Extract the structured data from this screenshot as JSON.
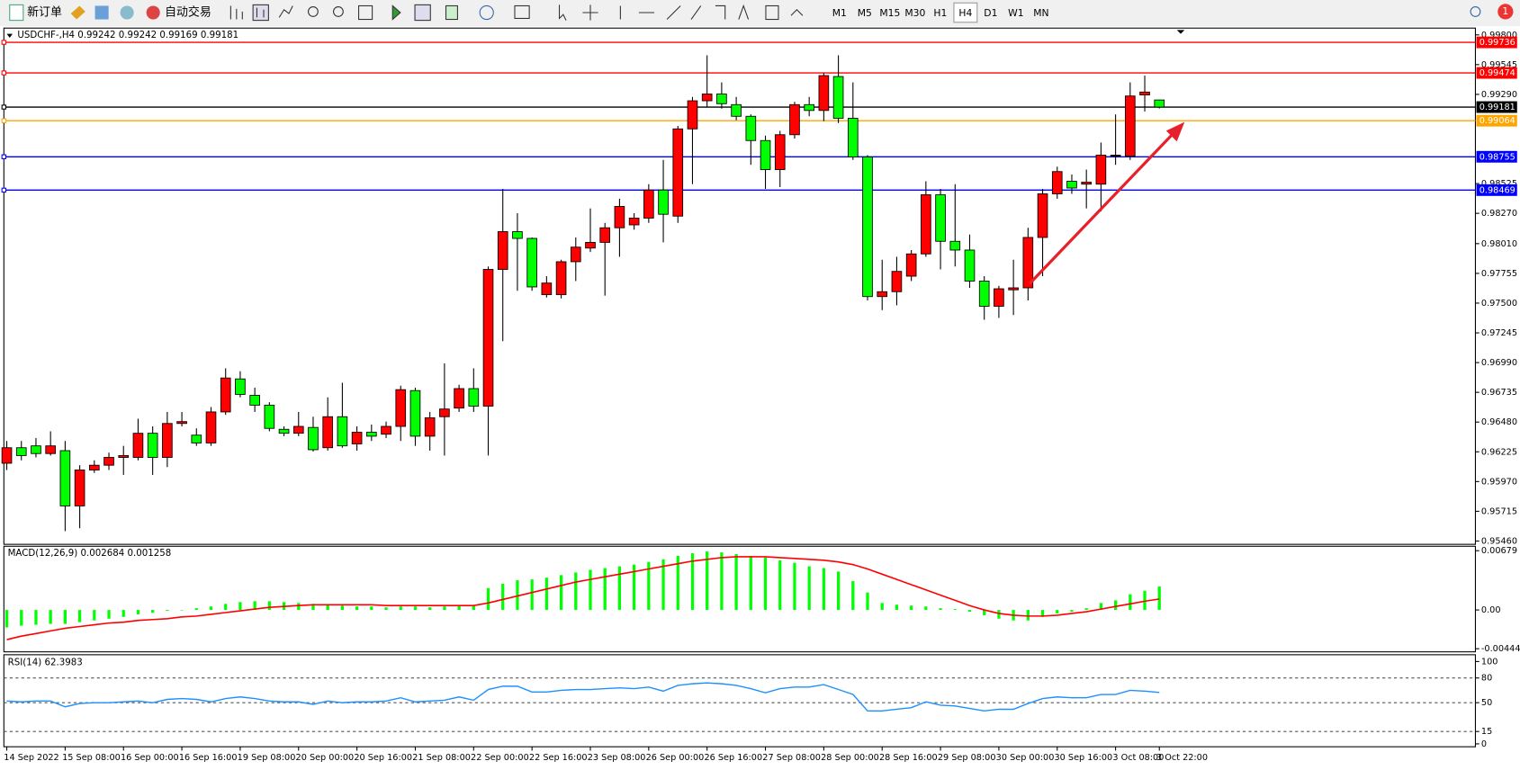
{
  "toolbar": {
    "new_order": "新订单",
    "auto_trading": "自动交易",
    "timeframes": [
      "M1",
      "M5",
      "M15",
      "M30",
      "H1",
      "H4",
      "D1",
      "W1",
      "MN"
    ],
    "active_timeframe": "H4",
    "notifications": 1
  },
  "chart_data": [
    {
      "type": "candlestick",
      "title": "USDCHF-,H4 0.99242 0.99242 0.99169 0.99181",
      "up_color": "#ff0000",
      "down_color": "#00ff00",
      "categories": [
        "14 Sep 2022",
        null,
        null,
        null,
        "15 Sep 08:00",
        null,
        null,
        null,
        "16 Sep 00:00",
        null,
        null,
        null,
        "16 Sep 16:00",
        null,
        null,
        null,
        "19 Sep 08:00",
        null,
        null,
        null,
        "20 Sep 00:00",
        null,
        null,
        null,
        "20 Sep 16:00",
        null,
        null,
        null,
        "21 Sep 08:00",
        null,
        null,
        null,
        "22 Sep 00:00",
        null,
        null,
        null,
        "22 Sep 16:00",
        null,
        null,
        null,
        "23 Sep 08:00",
        null,
        null,
        null,
        "26 Sep 00:00",
        null,
        null,
        null,
        "26 Sep 16:00",
        null,
        null,
        null,
        "27 Sep 08:00",
        null,
        null,
        null,
        "28 Sep 00:00",
        null,
        null,
        null,
        "28 Sep 16:00",
        null,
        null,
        null,
        "29 Sep 08:00",
        null,
        null,
        null,
        "30 Sep 00:00",
        null,
        null,
        null,
        "30 Sep 16:00",
        null,
        null,
        null,
        "3 Oct 08:00",
        null,
        null,
        "3 Oct 22:00"
      ],
      "open": [
        0.96127,
        0.9626,
        0.96276,
        0.9621,
        0.96235,
        0.95761,
        0.96069,
        0.9611,
        0.96177,
        0.96177,
        0.96384,
        0.96177,
        0.96468,
        0.96368,
        0.96301,
        0.96567,
        0.9685,
        0.96709,
        0.96625,
        0.96418,
        0.96384,
        0.96434,
        0.9626,
        0.96526,
        0.96293,
        0.96393,
        0.96376,
        0.96443,
        0.9675,
        0.96359,
        0.96526,
        0.966,
        0.96767,
        0.96617,
        0.97789,
        0.98113,
        0.98055,
        0.97573,
        0.97573,
        0.97855,
        0.97972,
        0.98021,
        0.98146,
        0.98171,
        0.98229,
        0.9847,
        0.98246,
        0.98994,
        0.99235,
        0.99293,
        0.99202,
        0.99102,
        0.98894,
        0.98645,
        0.98944,
        0.99202,
        0.99152,
        0.99443,
        0.99085,
        0.98753,
        0.97556,
        0.97598,
        0.97731,
        0.97922,
        0.98429,
        0.9803,
        0.97955,
        0.97689,
        0.97473,
        0.97614,
        0.97631,
        0.98063,
        0.98437,
        0.98545,
        0.9852,
        0.9852,
        0.98761,
        0.98761,
        0.99285,
        0.99242
      ],
      "high": [
        0.96318,
        0.96318,
        0.96343,
        0.96401,
        0.96318,
        0.9611,
        0.96152,
        0.96218,
        0.96276,
        0.96509,
        0.96443,
        0.96567,
        0.96567,
        0.96426,
        0.96609,
        0.96941,
        0.96916,
        0.96775,
        0.9665,
        0.96443,
        0.96567,
        0.96526,
        0.96692,
        0.96817,
        0.96443,
        0.96459,
        0.96484,
        0.96792,
        0.96775,
        0.96567,
        0.96983,
        0.968,
        0.96941,
        0.97814,
        0.98479,
        0.98271,
        0.98063,
        0.97731,
        0.97872,
        0.98063,
        0.98312,
        0.98188,
        0.98395,
        0.98271,
        0.9852,
        0.98728,
        0.99019,
        0.99268,
        0.99625,
        0.99393,
        0.99268,
        0.99118,
        0.98936,
        0.98977,
        0.99226,
        0.99268,
        0.99476,
        0.99625,
        0.99393,
        0.98769,
        0.97872,
        0.97897,
        0.97955,
        0.98545,
        0.98479,
        0.9852,
        0.98088,
        0.97731,
        0.97648,
        0.97872,
        0.98146,
        0.98479,
        0.9867,
        0.98603,
        0.98645,
        0.98877,
        0.99118,
        0.99393,
        0.99451,
        0.99242
      ],
      "low": [
        0.96069,
        0.96152,
        0.96177,
        0.96193,
        0.95545,
        0.9557,
        0.96044,
        0.96069,
        0.96027,
        0.96152,
        0.96027,
        0.96094,
        0.96443,
        0.96276,
        0.96276,
        0.96542,
        0.96692,
        0.96567,
        0.96401,
        0.96359,
        0.96359,
        0.96227,
        0.96235,
        0.9626,
        0.96235,
        0.96318,
        0.96343,
        0.96318,
        0.96276,
        0.96235,
        0.96193,
        0.96567,
        0.96567,
        0.96193,
        0.97174,
        0.97606,
        0.97606,
        0.97548,
        0.9754,
        0.97689,
        0.97938,
        0.97564,
        0.97897,
        0.9813,
        0.98188,
        0.98021,
        0.98188,
        0.9852,
        0.99185,
        0.99168,
        0.99069,
        0.98686,
        0.98479,
        0.98495,
        0.98911,
        0.99102,
        0.9906,
        0.99044,
        0.98728,
        0.97523,
        0.9744,
        0.97481,
        0.97689,
        0.97897,
        0.97789,
        0.97814,
        0.97631,
        0.97357,
        0.97373,
        0.97398,
        0.97523,
        0.97731,
        0.98395,
        0.98437,
        0.98312,
        0.98287,
        0.98686,
        0.98728,
        0.99143,
        0.99169
      ],
      "close": [
        0.9626,
        0.96193,
        0.9621,
        0.96276,
        0.95761,
        0.96069,
        0.9611,
        0.96177,
        0.96193,
        0.96384,
        0.96177,
        0.96468,
        0.96484,
        0.96301,
        0.96567,
        0.96858,
        0.96717,
        0.96625,
        0.96426,
        0.96384,
        0.96443,
        0.96243,
        0.96526,
        0.96276,
        0.96393,
        0.96359,
        0.96443,
        0.96758,
        0.96359,
        0.96517,
        0.96592,
        0.96767,
        0.96617,
        0.97789,
        0.98113,
        0.98055,
        0.97639,
        0.97672,
        0.97855,
        0.9798,
        0.98021,
        0.98146,
        0.98329,
        0.98229,
        0.9847,
        0.98262,
        0.98994,
        0.99235,
        0.99293,
        0.9921,
        0.99102,
        0.98894,
        0.98645,
        0.98944,
        0.99202,
        0.99152,
        0.99451,
        0.99085,
        0.98753,
        0.97556,
        0.97598,
        0.97772,
        0.97922,
        0.98429,
        0.9803,
        0.97955,
        0.97689,
        0.97473,
        0.97623,
        0.97631,
        0.98063,
        0.98437,
        0.98628,
        0.98487,
        0.98537,
        0.98769,
        0.98769,
        0.99276,
        0.9931,
        0.99181
      ],
      "ylim": [
        0.9544,
        0.9985
      ],
      "yticks": [
        {
          "value": 0.998,
          "label": "0.99800"
        },
        0.99545,
        {
          "value": 0.9929,
          "label": "0.99290"
        },
        0.98525,
        {
          "value": 0.9827,
          "label": "0.98270"
        },
        {
          "value": 0.9801,
          "label": "0.98010"
        },
        0.97755,
        {
          "value": 0.975,
          "label": "0.97500"
        },
        0.97245,
        {
          "value": 0.9699,
          "label": "0.96990"
        },
        0.96735,
        {
          "value": 0.9648,
          "label": "0.96480"
        },
        0.96225,
        {
          "value": 0.9597,
          "label": "0.95970"
        },
        0.95715,
        {
          "value": 0.9546,
          "label": "0.95460"
        }
      ],
      "hlines": [
        {
          "value": 0.99736,
          "color": "#ff0000"
        },
        {
          "value": 0.99474,
          "color": "#ff0000"
        },
        {
          "value": 0.99181,
          "color": "#000000"
        },
        {
          "value": 0.99064,
          "color": "#ffa500"
        },
        {
          "value": 0.98755,
          "color": "#0000ff"
        },
        {
          "value": 0.98469,
          "color": "#0000ff"
        }
      ]
    },
    {
      "type": "macd",
      "title": "MACD(12,26,9) 0.002684 0.001258",
      "series": [
        {
          "type": "bar",
          "color": "#00ff00",
          "values": [
            -0.002,
            -0.0018,
            -0.0017,
            -0.0016,
            -0.0016,
            -0.0014,
            -0.0012,
            -0.001,
            -0.0008,
            -0.0005,
            -0.0003,
            -0.0001,
            0,
            0.0002,
            0.0004,
            0.0007,
            0.0009,
            0.001,
            0.001,
            0.0009,
            0.0008,
            0.0007,
            0.0006,
            0.0005,
            0.0004,
            0.0004,
            0.0003,
            0.0004,
            0.0004,
            0.0003,
            0.0004,
            0.0005,
            0.0005,
            0.0025,
            0.003,
            0.0034,
            0.0035,
            0.0037,
            0.004,
            0.0043,
            0.0046,
            0.0048,
            0.005,
            0.0052,
            0.0055,
            0.0058,
            0.0062,
            0.0065,
            0.0067,
            0.0066,
            0.0064,
            0.0062,
            0.006,
            0.0057,
            0.0054,
            0.005,
            0.0048,
            0.0044,
            0.0033,
            0.002,
            0.0008,
            0.0006,
            0.0005,
            0.0004,
            0.0002,
            0.0001,
            -0.0002,
            -0.0006,
            -0.001,
            -0.0012,
            -0.0012,
            -0.0008,
            -0.0004,
            -0.0002,
            0.0002,
            0.0008,
            0.0011,
            0.0018,
            0.0022,
            0.002684
          ]
        },
        {
          "type": "line",
          "color": "#ff0000",
          "values": [
            -0.0034,
            -0.003,
            -0.0027,
            -0.0024,
            -0.0021,
            -0.0019,
            -0.0017,
            -0.0015,
            -0.0014,
            -0.0012,
            -0.0011,
            -0.001,
            -0.0008,
            -0.0007,
            -0.0005,
            -0.0003,
            -0.0001,
            0.0001,
            0.0003,
            0.0004,
            0.0005,
            0.0006,
            0.0006,
            0.0006,
            0.0006,
            0.0006,
            0.0005,
            0.0005,
            0.0005,
            0.0005,
            0.0005,
            0.0005,
            0.0005,
            0.0008,
            0.0012,
            0.0016,
            0.002,
            0.0024,
            0.0028,
            0.0032,
            0.0035,
            0.0038,
            0.0041,
            0.0044,
            0.0047,
            0.005,
            0.0053,
            0.0056,
            0.0058,
            0.006,
            0.0061,
            0.0061,
            0.0061,
            0.006,
            0.0059,
            0.0058,
            0.0057,
            0.0055,
            0.0052,
            0.0047,
            0.0041,
            0.0035,
            0.0029,
            0.0023,
            0.0017,
            0.0011,
            0.0005,
            0,
            -0.0004,
            -0.0006,
            -0.0007,
            -0.0007,
            -0.0006,
            -0.0004,
            -0.0002,
            0.0001,
            0.0004,
            0.0007,
            0.001,
            0.001258
          ]
        }
      ],
      "ylim": [
        -0.0048,
        0.0073
      ],
      "yticks": [
        0.00679,
        {
          "value": 0,
          "label": "0.00"
        },
        -0.004442
      ]
    },
    {
      "type": "line",
      "title": "RSI(14) 62.3983",
      "color": "#1e90ff",
      "grid": true,
      "values": [
        52,
        51,
        52,
        52,
        45,
        49,
        50,
        50,
        51,
        52,
        50,
        54,
        55,
        54,
        51,
        55,
        57,
        55,
        52,
        51,
        51,
        48,
        52,
        50,
        51,
        51,
        52,
        56,
        51,
        52,
        53,
        57,
        53,
        66,
        70,
        70,
        63,
        63,
        65,
        66,
        66,
        67,
        68,
        67,
        69,
        64,
        71,
        73,
        74,
        73,
        71,
        67,
        62,
        67,
        69,
        69,
        72,
        66,
        60,
        40,
        40,
        42,
        44,
        51,
        47,
        46,
        43,
        40,
        42,
        42,
        49,
        55,
        57,
        56,
        56,
        60,
        60,
        65,
        64,
        62.3983
      ],
      "ylim": [
        0,
        100
      ],
      "yticks": [
        100,
        80,
        50,
        15,
        0
      ]
    }
  ]
}
